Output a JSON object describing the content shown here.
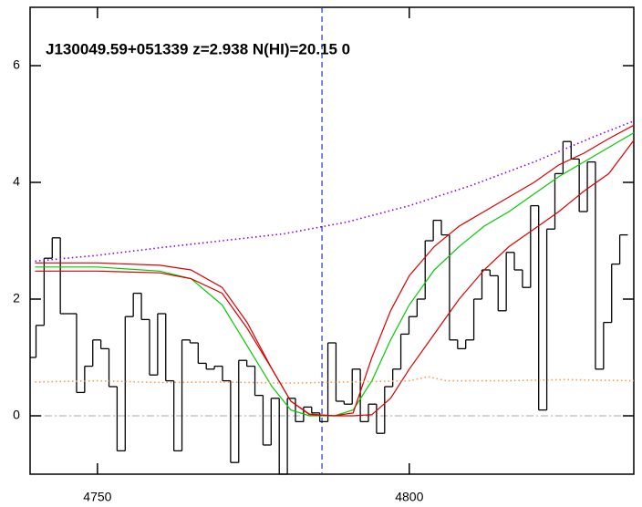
{
  "chart_data": {
    "type": "line",
    "annotation": "J130049.59+051339 z=2.938 N(HI)=20.15 0",
    "xlim": [
      4739.2,
      4836
    ],
    "ylim": [
      -1,
      7
    ],
    "xticks": [
      4750,
      4800
    ],
    "yticks": [
      0,
      2,
      4,
      6
    ],
    "vline": 4786,
    "vline_color": "#2233cc",
    "hline": 0,
    "hline_color": "#aaaaaa",
    "series": [
      {
        "color": "#000000",
        "style": "step",
        "x": [
          4739.5,
          4740.8,
          4742.1,
          4743.4,
          4744.7,
          4746.0,
          4747.3,
          4748.6,
          4749.9,
          4751.2,
          4752.5,
          4753.8,
          4755.1,
          4756.4,
          4757.7,
          4759.0,
          4760.3,
          4761.6,
          4762.9,
          4764.2,
          4765.5,
          4766.8,
          4768.1,
          4769.4,
          4770.7,
          4772.0,
          4773.3,
          4774.6,
          4775.9,
          4777.2,
          4778.5,
          4779.8,
          4781.1,
          4782.4,
          4783.7,
          4785.0,
          4786.3,
          4787.6,
          4788.9,
          4790.2,
          4791.5,
          4792.8,
          4794.1,
          4795.4,
          4796.7,
          4798.0,
          4799.3,
          4800.6,
          4801.9,
          4803.2,
          4804.5,
          4805.8,
          4807.1,
          4808.4,
          4809.7,
          4811.0,
          4812.3,
          4813.6,
          4814.9,
          4816.2,
          4817.5,
          4818.8,
          4820.1,
          4821.4,
          4822.7,
          4824.0,
          4825.3,
          4826.6,
          4827.9,
          4829.2,
          4830.5,
          4831.8,
          4833.1,
          4834.4
        ],
        "values": [
          1.0,
          1.55,
          2.7,
          3.05,
          1.75,
          1.75,
          0.4,
          0.85,
          1.3,
          1.15,
          0.5,
          -0.6,
          1.7,
          2.1,
          1.65,
          0.7,
          1.75,
          0.6,
          -0.6,
          1.3,
          1.25,
          0.9,
          0.8,
          0.85,
          0.6,
          -0.8,
          0.95,
          0.85,
          0.35,
          -0.5,
          0.3,
          -1,
          0.3,
          -0.1,
          0.15,
          0.05,
          -0.1,
          1.25,
          0.25,
          0.2,
          0.8,
          -0.1,
          0.2,
          -0.3,
          0.5,
          0.8,
          1.4,
          1.7,
          2.0,
          3.0,
          3.35,
          3.1,
          1.3,
          1.15,
          1.3,
          2.0,
          2.5,
          2.4,
          1.8,
          2.8,
          2.5,
          2.2,
          3.6,
          0.1,
          3.2,
          4.15,
          4.7,
          4.4,
          3.5,
          4.35,
          0.8,
          1.6,
          2.6,
          3.1
        ]
      },
      {
        "color": "#00cc00",
        "style": "solid",
        "x": [
          4740,
          4750,
          4760,
          4765,
          4770,
          4774,
          4778,
          4781,
          4784,
          4788,
          4791,
          4794,
          4797,
          4800,
          4804,
          4808,
          4812,
          4816,
          4820,
          4824,
          4828,
          4832,
          4836
        ],
        "values": [
          2.55,
          2.55,
          2.48,
          2.35,
          1.9,
          1.2,
          0.5,
          0.1,
          0.0,
          0.0,
          0.1,
          0.6,
          1.3,
          1.9,
          2.5,
          2.9,
          3.25,
          3.5,
          3.8,
          4.1,
          4.35,
          4.6,
          4.85
        ]
      },
      {
        "color": "#dd0000",
        "style": "solid",
        "x": [
          4740,
          4750,
          4760,
          4765,
          4770,
          4774,
          4778,
          4781,
          4784,
          4788,
          4791,
          4794,
          4797,
          4800,
          4804,
          4808,
          4812,
          4816,
          4820,
          4824,
          4828,
          4832,
          4836
        ],
        "values": [
          2.62,
          2.62,
          2.58,
          2.5,
          2.2,
          1.6,
          0.8,
          0.25,
          0.02,
          0.0,
          0.05,
          1.0,
          1.8,
          2.4,
          2.9,
          3.25,
          3.5,
          3.75,
          4.0,
          4.3,
          4.5,
          4.75,
          4.98
        ]
      },
      {
        "color": "#dd0000",
        "style": "solid",
        "x": [
          4740,
          4750,
          4760,
          4765,
          4770,
          4774,
          4778,
          4781,
          4784,
          4788,
          4791,
          4794,
          4797,
          4800,
          4804,
          4808,
          4812,
          4816,
          4820,
          4824,
          4828,
          4832,
          4836
        ],
        "values": [
          2.48,
          2.48,
          2.45,
          2.35,
          2.1,
          1.5,
          0.8,
          0.25,
          0.03,
          0.0,
          0.0,
          0.02,
          0.3,
          0.8,
          1.4,
          2.0,
          2.5,
          2.9,
          3.2,
          3.5,
          3.85,
          4.15,
          4.72
        ]
      },
      {
        "color": "#8800ee",
        "style": "dotted",
        "x": [
          4740,
          4750,
          4760,
          4770,
          4780,
          4790,
          4800,
          4810,
          4820,
          4830,
          4836
        ],
        "values": [
          2.65,
          2.75,
          2.88,
          3.0,
          3.12,
          3.32,
          3.6,
          3.95,
          4.35,
          4.8,
          5.05
        ]
      },
      {
        "color": "#ff9944",
        "style": "dotted",
        "x": [
          4740,
          4750,
          4760,
          4770,
          4780,
          4790,
          4800,
          4803,
          4806,
          4815,
          4825,
          4836
        ],
        "values": [
          0.58,
          0.6,
          0.57,
          0.58,
          0.56,
          0.58,
          0.6,
          0.67,
          0.6,
          0.6,
          0.62,
          0.6
        ]
      }
    ]
  }
}
